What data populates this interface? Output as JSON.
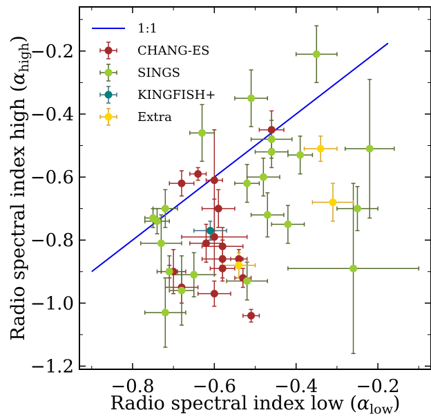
{
  "chart_data": {
    "type": "scatter",
    "title": "",
    "xlabel": "Radio spectral index low (",
    "xlabel_sym": "α",
    "xlabel_sub": "low",
    "xlabel_close": ")",
    "ylabel": "Radio spectral index high (",
    "ylabel_sym": "α",
    "ylabel_sub": "high",
    "ylabel_close": ")",
    "xlim": [
      -0.93,
      -0.07
    ],
    "ylim": [
      -1.21,
      -0.06
    ],
    "xticks": [
      -0.8,
      -0.6,
      -0.4,
      -0.2
    ],
    "xtick_labels": [
      "−0.8",
      "−0.6",
      "−0.4",
      "−0.2"
    ],
    "yticks": [
      -1.2,
      -1.0,
      -0.8,
      -0.6,
      -0.4,
      -0.2
    ],
    "ytick_labels": [
      "−1.2",
      "−1.0",
      "−0.8",
      "−0.6",
      "−0.4",
      "−0.2"
    ],
    "grid": false,
    "legend_position": "top-left",
    "reference_line": {
      "name": "1:1",
      "color": "#0000ee",
      "x": [
        -0.9,
        -0.175
      ],
      "y": [
        -0.9,
        -0.175
      ]
    },
    "series": [
      {
        "name": "CHANG-ES",
        "color": "#a52a2a",
        "points": [
          {
            "x": -0.46,
            "y": -0.45,
            "xerr": 0.03,
            "yerr": 0.06
          },
          {
            "x": -0.64,
            "y": -0.59,
            "xerr": 0.02,
            "yerr": 0.02
          },
          {
            "x": -0.68,
            "y": -0.62,
            "xerr": 0.03,
            "yerr": 0.04
          },
          {
            "x": -0.6,
            "y": -0.61,
            "xerr": 0.02,
            "yerr": 0.16
          },
          {
            "x": -0.59,
            "y": -0.7,
            "xerr": 0.04,
            "yerr": 0.06
          },
          {
            "x": -0.6,
            "y": -0.79,
            "xerr": 0.08,
            "yerr": 0.12
          },
          {
            "x": -0.62,
            "y": -0.81,
            "xerr": 0.04,
            "yerr": 0.06
          },
          {
            "x": -0.58,
            "y": -0.82,
            "xerr": 0.05,
            "yerr": 0.06
          },
          {
            "x": -0.58,
            "y": -0.86,
            "xerr": 0.05,
            "yerr": 0.06
          },
          {
            "x": -0.58,
            "y": -0.89,
            "xerr": 0.03,
            "yerr": 0.04
          },
          {
            "x": -0.54,
            "y": -0.86,
            "xerr": 0.02,
            "yerr": 0.03
          },
          {
            "x": -0.53,
            "y": -0.92,
            "xerr": 0.02,
            "yerr": 0.03
          },
          {
            "x": -0.71,
            "y": -0.9,
            "xerr": 0.02,
            "yerr": 0.02
          },
          {
            "x": -0.7,
            "y": -0.9,
            "xerr": 0.03,
            "yerr": 0.07
          },
          {
            "x": -0.68,
            "y": -0.95,
            "xerr": 0.04,
            "yerr": 0.05
          },
          {
            "x": -0.6,
            "y": -0.97,
            "xerr": 0.04,
            "yerr": 0.04
          },
          {
            "x": -0.51,
            "y": -1.04,
            "xerr": 0.02,
            "yerr": 0.02
          }
        ]
      },
      {
        "name": "SINGS",
        "color": "#9acd32",
        "errcolor": "#556b2f",
        "points": [
          {
            "x": -0.35,
            "y": -0.21,
            "xerr": 0.05,
            "yerr": 0.09
          },
          {
            "x": -0.51,
            "y": -0.35,
            "xerr": 0.04,
            "yerr": 0.09
          },
          {
            "x": -0.63,
            "y": -0.46,
            "xerr": 0.03,
            "yerr": 0.09
          },
          {
            "x": -0.46,
            "y": -0.48,
            "xerr": 0.05,
            "yerr": 0.06
          },
          {
            "x": -0.46,
            "y": -0.52,
            "xerr": 0.04,
            "yerr": 0.05
          },
          {
            "x": -0.39,
            "y": -0.53,
            "xerr": 0.03,
            "yerr": 0.06
          },
          {
            "x": -0.22,
            "y": -0.51,
            "xerr": 0.06,
            "yerr": 0.22
          },
          {
            "x": -0.48,
            "y": -0.6,
            "xerr": 0.04,
            "yerr": 0.06
          },
          {
            "x": -0.52,
            "y": -0.62,
            "xerr": 0.03,
            "yerr": 0.06
          },
          {
            "x": -0.72,
            "y": -0.7,
            "xerr": 0.03,
            "yerr": 0.06
          },
          {
            "x": -0.75,
            "y": -0.73,
            "xerr": 0.02,
            "yerr": 0.03
          },
          {
            "x": -0.74,
            "y": -0.74,
            "xerr": 0.03,
            "yerr": 0.04
          },
          {
            "x": -0.47,
            "y": -0.72,
            "xerr": 0.04,
            "yerr": 0.07
          },
          {
            "x": -0.42,
            "y": -0.75,
            "xerr": 0.04,
            "yerr": 0.06
          },
          {
            "x": -0.25,
            "y": -0.7,
            "xerr": 0.05,
            "yerr": 0.07
          },
          {
            "x": -0.73,
            "y": -0.81,
            "xerr": 0.05,
            "yerr": 0.09
          },
          {
            "x": -0.71,
            "y": -0.9,
            "xerr": 0.03,
            "yerr": 0.05
          },
          {
            "x": -0.65,
            "y": -0.91,
            "xerr": 0.05,
            "yerr": 0.07
          },
          {
            "x": -0.68,
            "y": -0.96,
            "xerr": 0.03,
            "yerr": 0.11
          },
          {
            "x": -0.72,
            "y": -1.03,
            "xerr": 0.05,
            "yerr": 0.11
          },
          {
            "x": -0.52,
            "y": -0.93,
            "xerr": 0.05,
            "yerr": 0.06
          },
          {
            "x": -0.26,
            "y": -0.89,
            "xerr": 0.16,
            "yerr": 0.27
          }
        ]
      },
      {
        "name": "KINGFISH+",
        "color": "#008080",
        "errcolor": "#3a6f7a",
        "points": [
          {
            "x": -0.61,
            "y": -0.77,
            "xerr": 0.04,
            "yerr": 0.03
          }
        ]
      },
      {
        "name": "Extra",
        "color": "#ffd700",
        "errcolor": "#daa520",
        "points": [
          {
            "x": -0.34,
            "y": -0.51,
            "xerr": 0.04,
            "yerr": 0.04
          },
          {
            "x": -0.31,
            "y": -0.68,
            "xerr": 0.05,
            "yerr": 0.06
          },
          {
            "x": -0.54,
            "y": -0.88,
            "xerr": 0.04,
            "yerr": 0.04
          }
        ]
      }
    ]
  }
}
